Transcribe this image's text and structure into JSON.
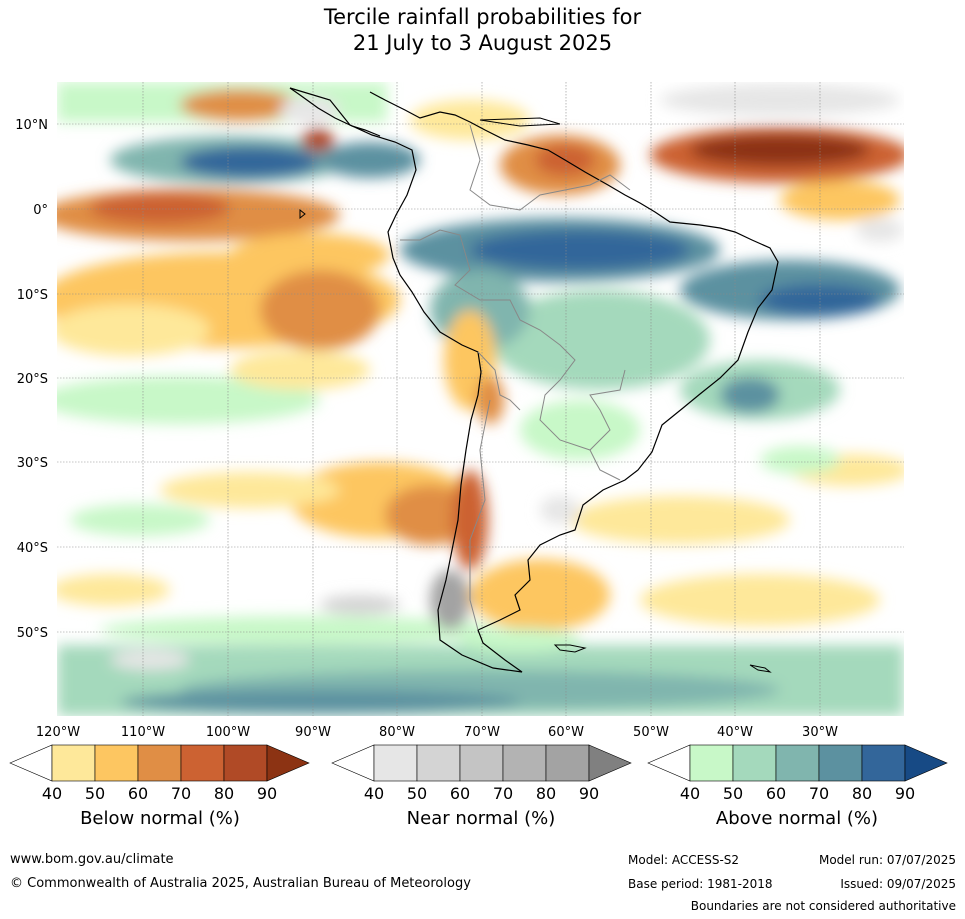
{
  "title": {
    "line1": "Tercile rainfall probabilities for",
    "line2": "21 July to 3 August 2025"
  },
  "map": {
    "lat_labels": [
      "10°N",
      "0°",
      "10°S",
      "20°S",
      "30°S",
      "40°S",
      "50°S"
    ],
    "lon_labels": [
      "120°W",
      "110°W",
      "100°W",
      "90°W",
      "80°W",
      "70°W",
      "60°W",
      "50°W",
      "40°W",
      "30°W"
    ]
  },
  "colorbars": {
    "below": {
      "label": "Below normal (%)",
      "ticks": [
        "40",
        "50",
        "60",
        "70",
        "80",
        "90"
      ],
      "colors": [
        "#ffffff",
        "#fee89a",
        "#fdc661",
        "#e08e45",
        "#cc6232",
        "#b04a26",
        "#8c3313"
      ]
    },
    "near": {
      "label": "Near normal (%)",
      "ticks": [
        "40",
        "50",
        "60",
        "70",
        "80",
        "90"
      ],
      "colors": [
        "#ffffff",
        "#e6e6e6",
        "#d4d4d4",
        "#c4c4c4",
        "#b3b3b3",
        "#a3a3a3",
        "#808080"
      ]
    },
    "above": {
      "label": "Above normal (%)",
      "ticks": [
        "40",
        "50",
        "60",
        "70",
        "80",
        "90"
      ],
      "colors": [
        "#ffffff",
        "#c8f8c8",
        "#a4d9bc",
        "#80b5ae",
        "#5c91a0",
        "#33669a",
        "#174a85"
      ]
    }
  },
  "footer": {
    "website": "www.bom.gov.au/climate",
    "copyright": "© Commonwealth of Australia 2025, Australian Bureau of Meteorology",
    "model": "Model: ACCESS-S2",
    "base_period": "Base period: 1981-2018",
    "model_run": "Model run: 07/07/2025",
    "issued": "Issued: 09/07/2025",
    "disclaimer": "Boundaries are not considered authoritative"
  }
}
